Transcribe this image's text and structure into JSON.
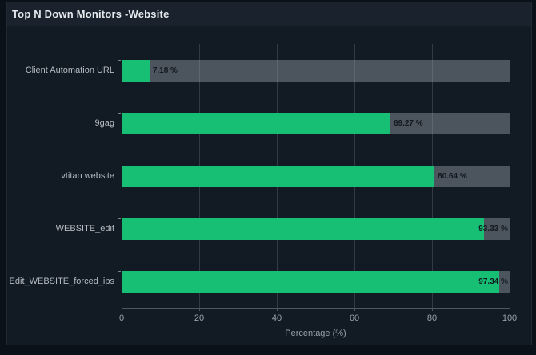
{
  "widget": {
    "title": "Top N Down Monitors -Website"
  },
  "colors": {
    "bar": "#16bf74",
    "track": "rgba(142,151,161,0.47)",
    "card_bg": "#121a23",
    "header_bg": "#1a232d",
    "page_bg": "#0b1118",
    "gridline": "#323b44",
    "axis": "#4e5760"
  },
  "chart_data": {
    "type": "bar",
    "orientation": "horizontal",
    "title": "Top N Down Monitors -Website",
    "categories": [
      "Client Automation URL",
      "9gag",
      "vtitan website",
      "WEBSITE_edit",
      "Edit_WEBSITE_forced_ips"
    ],
    "values": [
      7.18,
      69.27,
      80.64,
      93.33,
      97.34
    ],
    "value_labels": [
      "7.18 %",
      "69.27 %",
      "80.64 %",
      "93.33 %",
      "97.34 %"
    ],
    "xlabel": "Percentage (%)",
    "ylabel": "",
    "xlim": [
      0,
      100
    ],
    "x_ticks": [
      0,
      20,
      40,
      60,
      80,
      100
    ],
    "x_tick_labels": [
      "0",
      "20",
      "40",
      "60",
      "80",
      "100"
    ],
    "grid": true,
    "legend": false
  }
}
